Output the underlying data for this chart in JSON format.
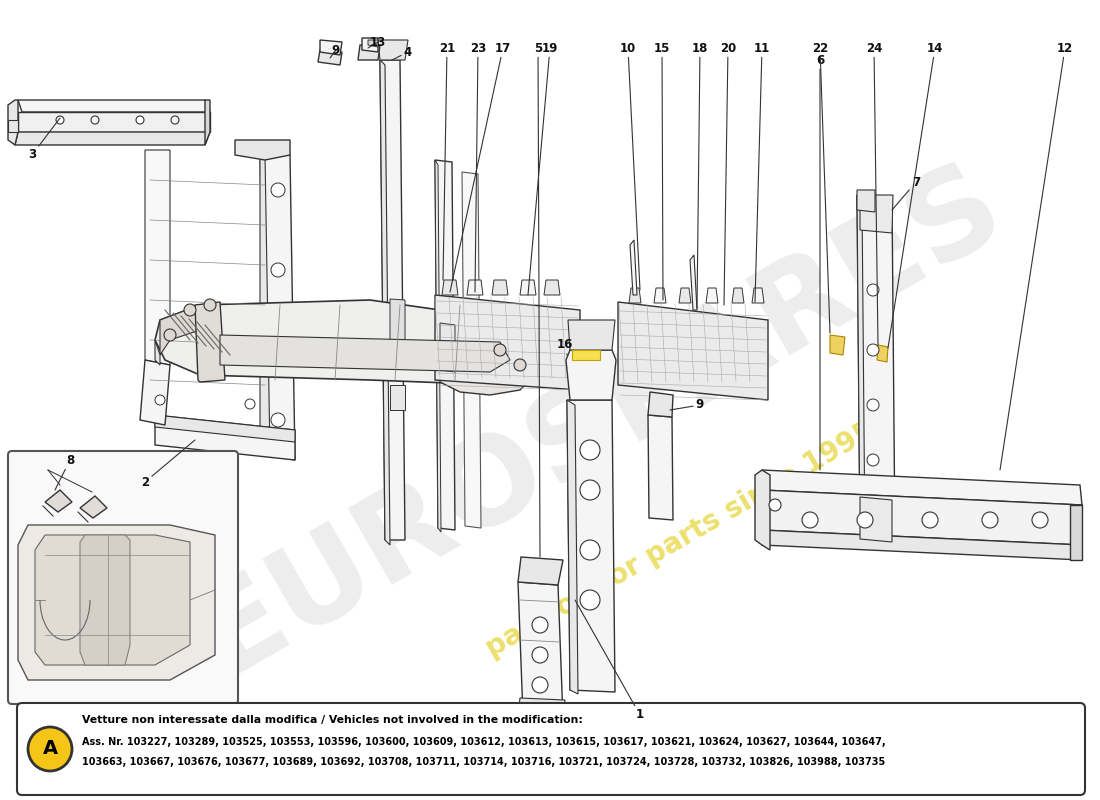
{
  "bg_color": "#ffffff",
  "watermark1": "EUROSPARES",
  "watermark2": "passion for parts since 1995",
  "wm1_color": "#cccccc",
  "wm2_color": "#e8d84a",
  "footer_circle_color": "#f5c518",
  "footer_circle_text": "A",
  "footer_bold_line1": "Vetture non interessate dalla modifica / Vehicles not involved in the modification:",
  "footer_line2": "Ass. Nr. 103227, 103289, 103525, 103553, 103596, 103600, 103609, 103612, 103613, 103615, 103617, 103621, 103624, 103627, 103644, 103647,",
  "footer_line3": "103663, 103667, 103676, 103677, 103689, 103692, 103708, 103711, 103714, 103716, 103721, 103724, 103728, 103732, 103826, 103988, 103735",
  "edge_color": "#333333",
  "face_light": "#f5f5f5",
  "face_mid": "#e8e8e8",
  "face_dark": "#d8d8d8"
}
